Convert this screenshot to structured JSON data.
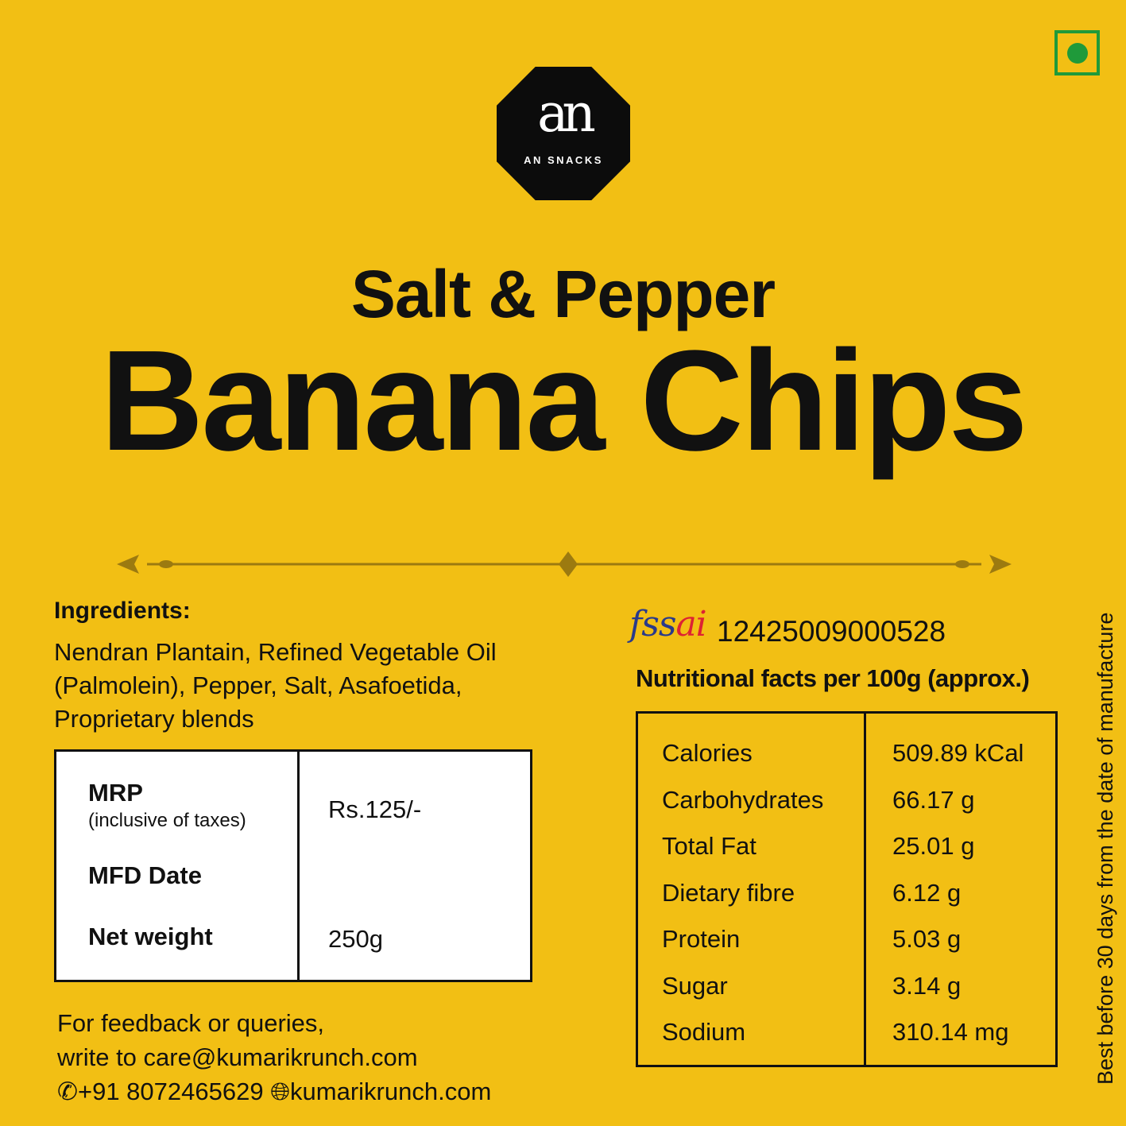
{
  "brand": {
    "logo_mark": "an",
    "logo_name": "AN SNACKS",
    "veg_symbol_color": "#1f9a3a"
  },
  "product": {
    "flavour": "Salt & Pepper",
    "name": "Banana Chips"
  },
  "colors": {
    "background": "#F2BF14",
    "divider": "#9c7a10"
  },
  "ingredients": {
    "heading": "Ingredients:",
    "text": "Nendran Plantain, Refined Vegetable Oil (Palmolein), Pepper, Salt, Asafoetida, Proprietary blends"
  },
  "info_table": {
    "mrp_label": "MRP",
    "mrp_note": "(inclusive of taxes)",
    "mrp_value": "Rs.125/-",
    "mfd_label": "MFD Date",
    "mfd_value": "",
    "weight_label": "Net weight",
    "weight_value": "250g"
  },
  "contact": {
    "line1": "For feedback or queries,",
    "line2": "write to care@kumarikrunch.com",
    "phone": "+91 8072465629",
    "website": "kumarikrunch.com"
  },
  "fssai": {
    "logo": "fssai",
    "number": "12425009000528"
  },
  "nutrition": {
    "heading": "Nutritional facts per 100g (approx.)",
    "rows": [
      {
        "label": "Calories",
        "value": "509.89 kCal"
      },
      {
        "label": "Carbohydrates",
        "value": "66.17 g"
      },
      {
        "label": "Total Fat",
        "value": "25.01 g"
      },
      {
        "label": "Dietary fibre",
        "value": "6.12 g"
      },
      {
        "label": "Protein",
        "value": "5.03 g"
      },
      {
        "label": "Sugar",
        "value": "3.14 g"
      },
      {
        "label": "Sodium",
        "value": "310.14 mg"
      }
    ]
  },
  "shelf_life": "Best before 30 days from the date of manufacture"
}
